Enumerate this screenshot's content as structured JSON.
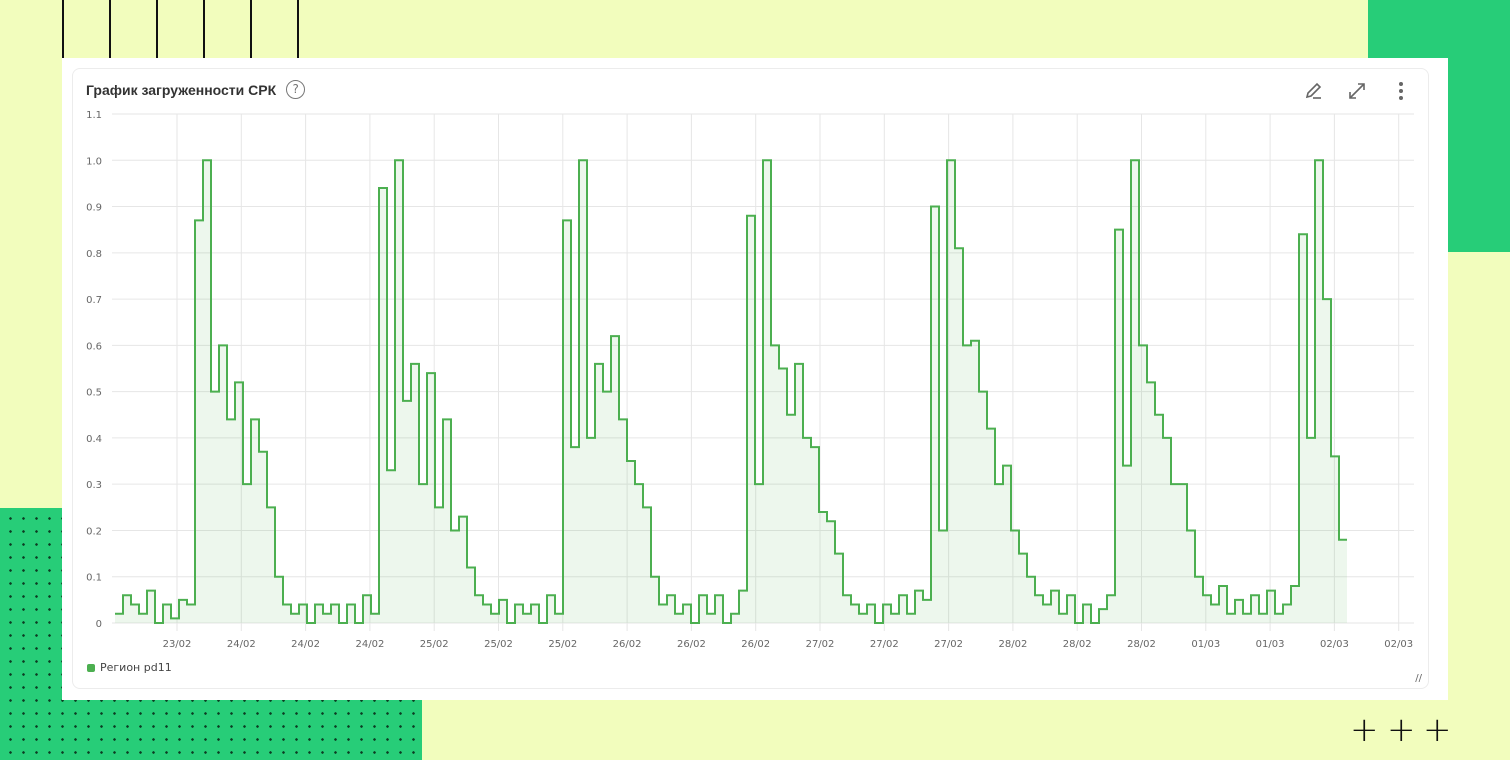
{
  "panel": {
    "title": "График загруженности СРК",
    "help_icon": "question-circle-icon",
    "toolbar": [
      "pencil-icon",
      "expand-icon",
      "more-vertical-icon"
    ]
  },
  "colors": {
    "series": "#4caf50",
    "background": "#f2fdbd",
    "accent": "#27cd78"
  },
  "chart_data": {
    "type": "line",
    "step": true,
    "area_fill": true,
    "title": "",
    "ylim": [
      0,
      1.1
    ],
    "y_ticks": [
      "0",
      "0.1",
      "0.2",
      "0.3",
      "0.4",
      "0.5",
      "0.6",
      "0.7",
      "0.8",
      "0.9",
      "1.0",
      "1.1"
    ],
    "x_ticks": [
      "23/02",
      "24/02",
      "24/02",
      "24/02",
      "25/02",
      "25/02",
      "25/02",
      "26/02",
      "26/02",
      "26/02",
      "27/02",
      "27/02",
      "27/02",
      "28/02",
      "28/02",
      "28/02",
      "01/03",
      "01/03",
      "02/03",
      "02/03"
    ],
    "grid": true,
    "legend": "bottom-left",
    "series": [
      {
        "name": "Регион pd11",
        "values": [
          0.02,
          0.06,
          0.04,
          0.02,
          0.07,
          0,
          0.04,
          0.01,
          0.05,
          0.04,
          0.87,
          1.0,
          0.5,
          0.6,
          0.44,
          0.52,
          0.3,
          0.44,
          0.37,
          0.25,
          0.1,
          0.04,
          0.02,
          0.04,
          0,
          0.04,
          0.02,
          0.04,
          0,
          0.04,
          0,
          0.06,
          0.02,
          0.94,
          0.33,
          1.0,
          0.48,
          0.56,
          0.3,
          0.54,
          0.25,
          0.44,
          0.2,
          0.23,
          0.12,
          0.06,
          0.04,
          0.02,
          0.05,
          0,
          0.04,
          0.02,
          0.04,
          0,
          0.06,
          0.02,
          0.87,
          0.38,
          1.0,
          0.4,
          0.56,
          0.5,
          0.62,
          0.44,
          0.35,
          0.3,
          0.25,
          0.1,
          0.04,
          0.06,
          0.02,
          0.04,
          0,
          0.06,
          0.02,
          0.06,
          0,
          0.02,
          0.07,
          0.88,
          0.3,
          1.0,
          0.6,
          0.55,
          0.45,
          0.56,
          0.4,
          0.38,
          0.24,
          0.22,
          0.15,
          0.06,
          0.04,
          0.02,
          0.04,
          0,
          0.04,
          0.02,
          0.06,
          0.02,
          0.07,
          0.05,
          0.9,
          0.2,
          1.0,
          0.81,
          0.6,
          0.61,
          0.5,
          0.42,
          0.3,
          0.34,
          0.2,
          0.15,
          0.1,
          0.06,
          0.04,
          0.07,
          0.02,
          0.06,
          0,
          0.04,
          0,
          0.03,
          0.06,
          0.85,
          0.34,
          1.0,
          0.6,
          0.52,
          0.45,
          0.4,
          0.3,
          0.3,
          0.2,
          0.1,
          0.06,
          0.04,
          0.08,
          0.02,
          0.05,
          0.02,
          0.06,
          0.02,
          0.07,
          0.02,
          0.04,
          0.08,
          0.84,
          0.4,
          1.0,
          0.7,
          0.36,
          0.18
        ]
      }
    ]
  }
}
